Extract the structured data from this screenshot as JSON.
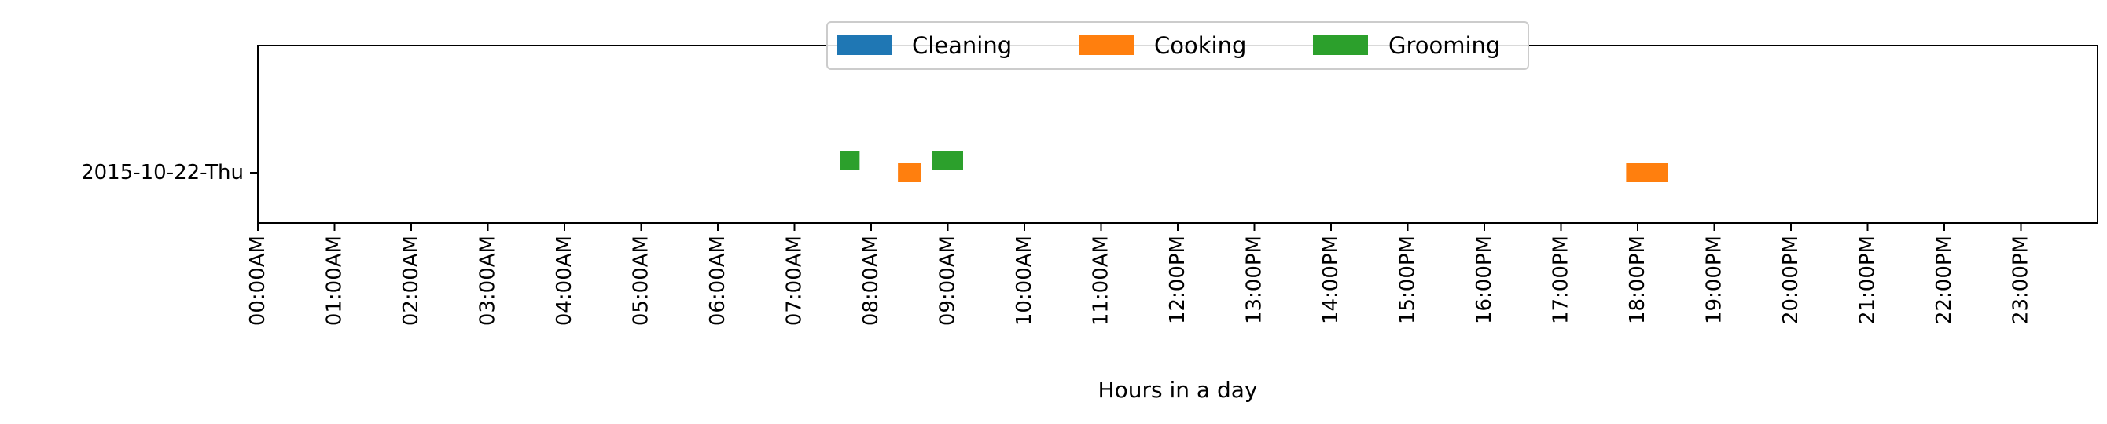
{
  "chart_data": {
    "type": "bar",
    "xlabel": "Hours in a day",
    "ylabel": "",
    "x_range_hours": [
      0,
      24
    ],
    "x_tick_labels": [
      "00:00AM",
      "01:00AM",
      "02:00AM",
      "03:00AM",
      "04:00AM",
      "05:00AM",
      "06:00AM",
      "07:00AM",
      "08:00AM",
      "09:00AM",
      "10:00AM",
      "11:00AM",
      "12:00PM",
      "13:00PM",
      "14:00PM",
      "15:00PM",
      "16:00PM",
      "17:00PM",
      "18:00PM",
      "19:00PM",
      "20:00PM",
      "21:00PM",
      "22:00PM",
      "23:00PM"
    ],
    "categories": [
      "2015-10-22-Thu"
    ],
    "grid": false,
    "legend_position": "top-center",
    "series": [
      {
        "name": "Cleaning",
        "color": "#1f77b4",
        "intervals": []
      },
      {
        "name": "Cooking",
        "color": "#ff7f0e",
        "intervals": [
          {
            "day": "2015-10-22-Thu",
            "start_hour": 8.35,
            "end_hour": 8.65
          },
          {
            "day": "2015-10-22-Thu",
            "start_hour": 17.85,
            "end_hour": 18.4
          }
        ]
      },
      {
        "name": "Grooming",
        "color": "#2ca02c",
        "intervals": [
          {
            "day": "2015-10-22-Thu",
            "start_hour": 7.6,
            "end_hour": 7.85
          },
          {
            "day": "2015-10-22-Thu",
            "start_hour": 8.8,
            "end_hour": 9.2
          }
        ]
      }
    ]
  }
}
